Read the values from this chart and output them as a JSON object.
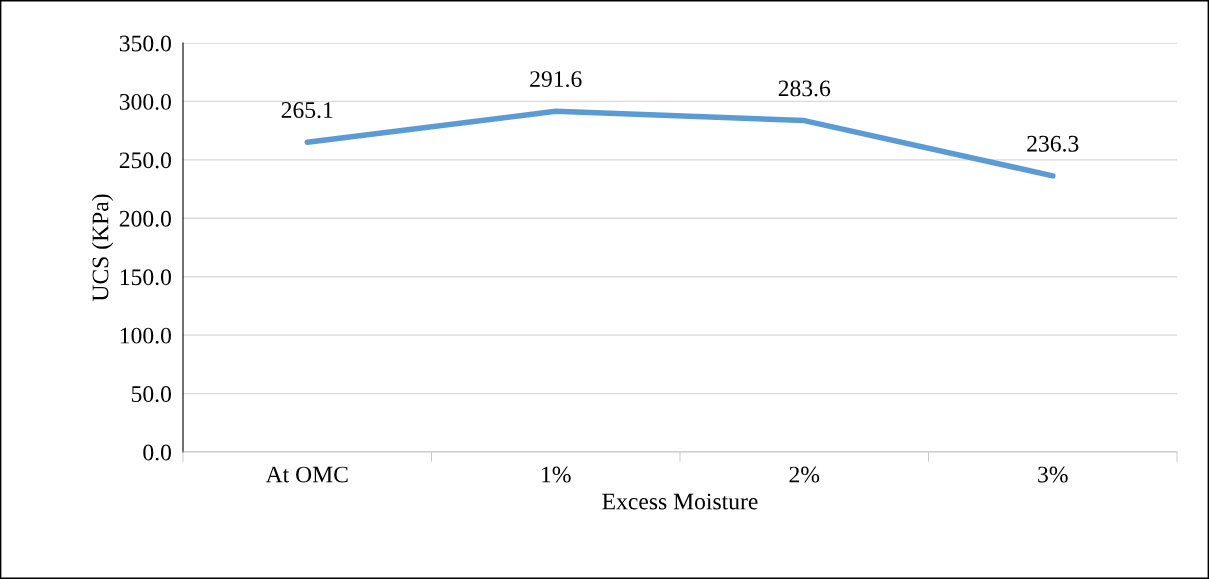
{
  "chart_data": {
    "type": "line",
    "xlabel": "Excess Moisture",
    "ylabel": "UCS (KPa)",
    "categories": [
      "At OMC",
      "1%",
      "2%",
      "3%"
    ],
    "series": [
      {
        "color": "#5b9bd5",
        "values": [
          265.1,
          291.6,
          283.6,
          236.3
        ]
      }
    ],
    "ylim": [
      0,
      350
    ],
    "yticks": [
      {
        "value": 0,
        "label": "0.0"
      },
      {
        "value": 50,
        "label": "50.0"
      },
      {
        "value": 100,
        "label": "100.0"
      },
      {
        "value": 150,
        "label": "150.0"
      },
      {
        "value": 200,
        "label": "200.0"
      },
      {
        "value": 250,
        "label": "250.0"
      },
      {
        "value": 300,
        "label": "300.0"
      },
      {
        "value": 350,
        "label": "350.0"
      }
    ],
    "grid": "y",
    "data_labels": true,
    "marker": "none",
    "line_style": "solid"
  }
}
